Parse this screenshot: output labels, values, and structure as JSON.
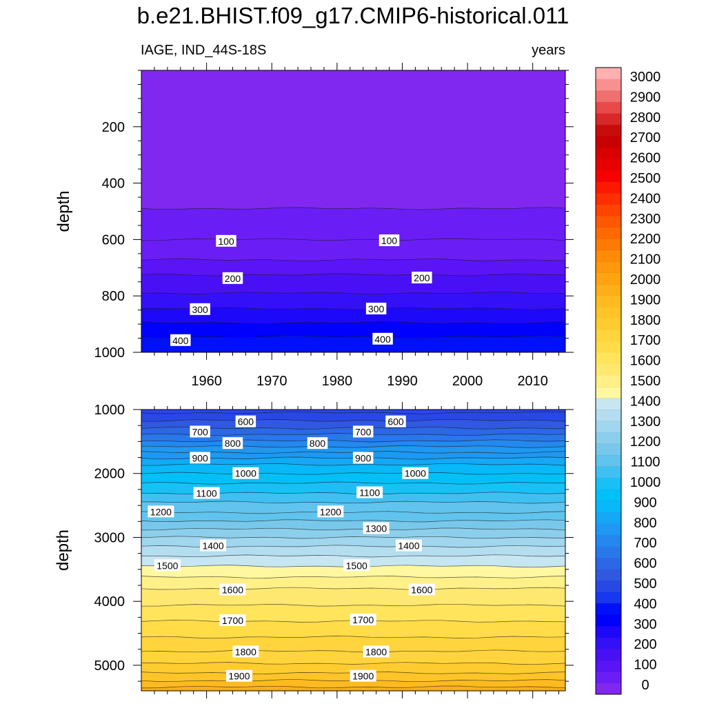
{
  "title": "b.e21.BHIST.f09_g17.CMIP6-historical.011",
  "subtitle_left": "IAGE, IND_44S-18S",
  "subtitle_right": "years",
  "chart_data": [
    {
      "type": "contour",
      "panel": "upper",
      "variable": "IAGE",
      "units": "years",
      "x_range": [
        1950,
        2015
      ],
      "x_ticks": [
        1960,
        1970,
        1980,
        1990,
        2000,
        2010
      ],
      "y_range": [
        0,
        1000
      ],
      "y_reversed": true,
      "y_ticks": [
        200,
        400,
        600,
        800,
        1000
      ],
      "ylabel": "depth",
      "isolines": [
        {
          "level": 50,
          "depth": 490
        },
        {
          "level": 100,
          "depth": 600
        },
        {
          "level": 150,
          "depth": 672
        },
        {
          "level": 200,
          "depth": 725
        },
        {
          "level": 250,
          "depth": 790
        },
        {
          "level": 300,
          "depth": 845
        },
        {
          "level": 350,
          "depth": 895
        },
        {
          "level": 400,
          "depth": 945
        }
      ],
      "contour_labels": [
        {
          "text": "100",
          "year": 1963,
          "depth": 606
        },
        {
          "text": "100",
          "year": 1988,
          "depth": 604
        },
        {
          "text": "200",
          "year": 1964,
          "depth": 738
        },
        {
          "text": "200",
          "year": 1993,
          "depth": 736
        },
        {
          "text": "300",
          "year": 1959,
          "depth": 848
        },
        {
          "text": "300",
          "year": 1986,
          "depth": 846
        },
        {
          "text": "400",
          "year": 1956,
          "depth": 958
        },
        {
          "text": "400",
          "year": 1987,
          "depth": 953
        }
      ]
    },
    {
      "type": "contour",
      "panel": "lower",
      "variable": "IAGE",
      "units": "years",
      "x_range": [
        1950,
        2015
      ],
      "y_range": [
        1000,
        5400
      ],
      "y_reversed": true,
      "y_ticks": [
        1000,
        2000,
        3000,
        4000,
        5000
      ],
      "ylabel": "depth",
      "isolines": [
        {
          "level": 550,
          "depth": 1050
        },
        {
          "level": 600,
          "depth": 1170
        },
        {
          "level": 650,
          "depth": 1290
        },
        {
          "level": 700,
          "depth": 1390
        },
        {
          "level": 750,
          "depth": 1490
        },
        {
          "level": 800,
          "depth": 1580
        },
        {
          "level": 850,
          "depth": 1670
        },
        {
          "level": 900,
          "depth": 1760
        },
        {
          "level": 950,
          "depth": 1860
        },
        {
          "level": 1000,
          "depth": 2000
        },
        {
          "level": 1050,
          "depth": 2150
        },
        {
          "level": 1100,
          "depth": 2310
        },
        {
          "level": 1150,
          "depth": 2450
        },
        {
          "level": 1200,
          "depth": 2610
        },
        {
          "level": 1250,
          "depth": 2740
        },
        {
          "level": 1300,
          "depth": 2870
        },
        {
          "level": 1350,
          "depth": 3000
        },
        {
          "level": 1400,
          "depth": 3140
        },
        {
          "level": 1450,
          "depth": 3290
        },
        {
          "level": 1500,
          "depth": 3450
        },
        {
          "level": 1550,
          "depth": 3620
        },
        {
          "level": 1600,
          "depth": 3800
        },
        {
          "level": 1650,
          "depth": 4060
        },
        {
          "level": 1700,
          "depth": 4310
        },
        {
          "level": 1750,
          "depth": 4560
        },
        {
          "level": 1800,
          "depth": 4780
        },
        {
          "level": 1850,
          "depth": 4970
        },
        {
          "level": 1900,
          "depth": 5120
        },
        {
          "level": 1950,
          "depth": 5240
        },
        {
          "level": 2000,
          "depth": 5340
        }
      ],
      "contour_labels": [
        {
          "text": "600",
          "year": 1966,
          "depth": 1190
        },
        {
          "text": "600",
          "year": 1989,
          "depth": 1190
        },
        {
          "text": "700",
          "year": 1959,
          "depth": 1350
        },
        {
          "text": "700",
          "year": 1984,
          "depth": 1350
        },
        {
          "text": "800",
          "year": 1964,
          "depth": 1530
        },
        {
          "text": "800",
          "year": 1977,
          "depth": 1530
        },
        {
          "text": "900",
          "year": 1959,
          "depth": 1760
        },
        {
          "text": "900",
          "year": 1984,
          "depth": 1760
        },
        {
          "text": "1000",
          "year": 1966,
          "depth": 2000
        },
        {
          "text": "1000",
          "year": 1992,
          "depth": 2000
        },
        {
          "text": "1100",
          "year": 1960,
          "depth": 2310
        },
        {
          "text": "1100",
          "year": 1985,
          "depth": 2300
        },
        {
          "text": "1200",
          "year": 1953,
          "depth": 2600
        },
        {
          "text": "1200",
          "year": 1979,
          "depth": 2600
        },
        {
          "text": "1300",
          "year": 1986,
          "depth": 2860
        },
        {
          "text": "1400",
          "year": 1961,
          "depth": 3130
        },
        {
          "text": "1400",
          "year": 1991,
          "depth": 3130
        },
        {
          "text": "1500",
          "year": 1954,
          "depth": 3440
        },
        {
          "text": "1500",
          "year": 1983,
          "depth": 3440
        },
        {
          "text": "1600",
          "year": 1964,
          "depth": 3820
        },
        {
          "text": "1600",
          "year": 1993,
          "depth": 3820
        },
        {
          "text": "1700",
          "year": 1964,
          "depth": 4300
        },
        {
          "text": "1700",
          "year": 1984,
          "depth": 4290
        },
        {
          "text": "1800",
          "year": 1966,
          "depth": 4790
        },
        {
          "text": "1800",
          "year": 1986,
          "depth": 4790
        },
        {
          "text": "1900",
          "year": 1965,
          "depth": 5170
        },
        {
          "text": "1900",
          "year": 1984,
          "depth": 5170
        }
      ]
    }
  ],
  "colorbar": {
    "labels": [
      "0",
      "100",
      "200",
      "300",
      "400",
      "500",
      "600",
      "700",
      "800",
      "900",
      "1000",
      "1100",
      "1200",
      "1300",
      "1400",
      "1500",
      "1600",
      "1700",
      "1800",
      "1900",
      "2000",
      "2100",
      "2200",
      "2300",
      "2400",
      "2500",
      "2600",
      "2700",
      "2800",
      "2900",
      "3000"
    ],
    "colors": [
      "#8028f0",
      "#6a1ef5",
      "#5a14f5",
      "#4a10f5",
      "#3410f8",
      "#1e08fa",
      "#0000ff",
      "#0010f8",
      "#1838f0",
      "#2848e6",
      "#3058e0",
      "#2c68e6",
      "#2878ea",
      "#2488ee",
      "#1e98f2",
      "#14a8f6",
      "#08b8f8",
      "#00c0f8",
      "#18c0f6",
      "#40c0f2",
      "#60c4ee",
      "#78c8ec",
      "#8ccfec",
      "#a0d6ee",
      "#b4def0",
      "#c6e6f2",
      "#fff8a0",
      "#fff088",
      "#ffe870",
      "#ffe45c",
      "#ffdc48",
      "#ffd43c",
      "#ffcc30",
      "#ffc428",
      "#ffba20",
      "#ffae18",
      "#ffa410",
      "#ff980c",
      "#ff8a08",
      "#ff7a04",
      "#ff6a00",
      "#ff5800",
      "#ff4400",
      "#ff2e00",
      "#ff1800",
      "#f80000",
      "#e80000",
      "#d80000",
      "#c80000",
      "#c80c0c",
      "#d82828",
      "#e84a4a",
      "#f07070",
      "#f89090",
      "#ffb0b0"
    ]
  }
}
